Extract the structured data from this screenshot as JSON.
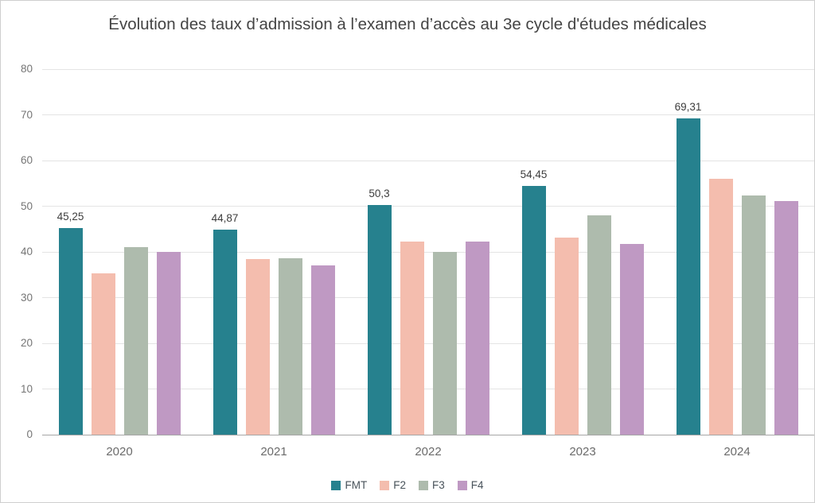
{
  "chart": {
    "title": "Évolution des taux d’admission à l’examen d’accès au 3e cycle d'études médicales"
  },
  "chart_data": {
    "type": "bar",
    "title": "Évolution des taux d’admission à l’examen d’accès au 3e cycle d'études médicales",
    "categories": [
      "2020",
      "2021",
      "2022",
      "2023",
      "2024"
    ],
    "series": [
      {
        "name": "FMT",
        "color": "#26818e",
        "values": [
          45.25,
          44.87,
          50.3,
          54.45,
          69.31
        ],
        "data_labels": [
          "45,25",
          "44,87",
          "50,3",
          "54,45",
          "69,31"
        ]
      },
      {
        "name": "F2",
        "color": "#f4bdae",
        "values": [
          35.3,
          38.4,
          42.2,
          43.2,
          56.0
        ]
      },
      {
        "name": "F3",
        "color": "#aebbad",
        "values": [
          41.0,
          38.7,
          40.0,
          48.0,
          52.4
        ]
      },
      {
        "name": "F4",
        "color": "#bf99c3",
        "values": [
          40.0,
          37.0,
          42.2,
          41.7,
          51.2
        ]
      }
    ],
    "xlabel": "",
    "ylabel": "",
    "ylim": [
      0,
      80
    ],
    "ytick_step": 10,
    "y_tick_labels": [
      "0",
      "10",
      "20",
      "30",
      "40",
      "50",
      "60",
      "70",
      "80"
    ],
    "grid": true,
    "legend_position": "bottom",
    "legend_entries": [
      "FMT",
      "F2",
      "F3",
      "F4"
    ]
  },
  "colors": {
    "background": "#ffffff",
    "frame_border": "#cfcfcf",
    "gridline": "#e4e4e4",
    "baseline": "#a6a6a6",
    "title_text": "#444444",
    "axis_text": "#757575",
    "x_axis_text": "#6b6b6b",
    "data_label_text": "#3d3d3d",
    "legend_text": "#48525a"
  }
}
